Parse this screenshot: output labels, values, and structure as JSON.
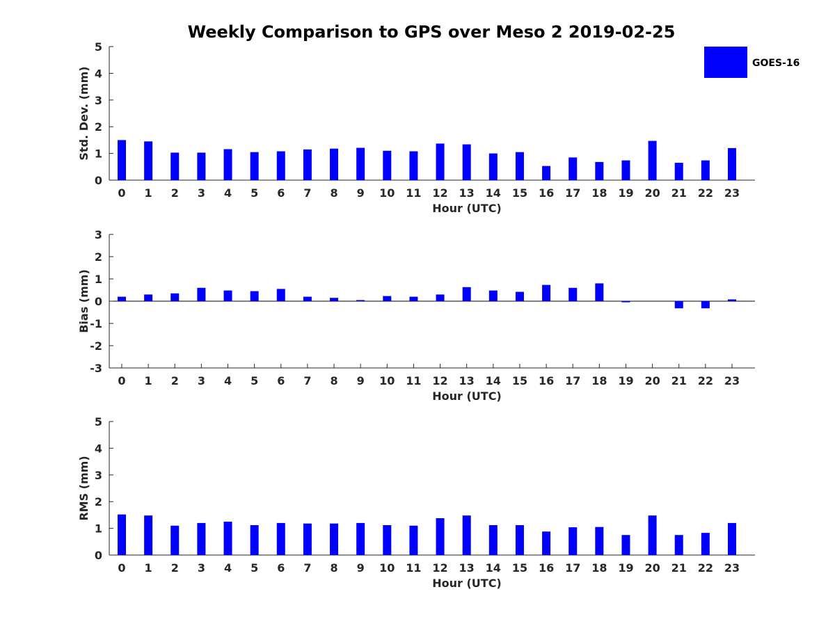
{
  "chart_data": {
    "title": "Weekly Comparison to GPS over Meso 2 2019-02-25",
    "legend": {
      "label": "GOES-16",
      "color": "#0000ff",
      "placement": "top-right"
    },
    "bar_color": "#0000ff",
    "subplots": [
      {
        "type": "bar",
        "categories": [
          "0",
          "1",
          "2",
          "3",
          "4",
          "5",
          "6",
          "7",
          "8",
          "9",
          "10",
          "11",
          "12",
          "13",
          "14",
          "15",
          "16",
          "17",
          "18",
          "19",
          "20",
          "21",
          "22",
          "23"
        ],
        "values": [
          1.5,
          1.45,
          1.03,
          1.03,
          1.16,
          1.05,
          1.08,
          1.15,
          1.18,
          1.21,
          1.1,
          1.08,
          1.37,
          1.34,
          1.0,
          1.05,
          0.53,
          0.85,
          0.68,
          0.74,
          1.47,
          0.65,
          0.74,
          1.2
        ],
        "xlabel": "Hour (UTC)",
        "ylabel": "Std. Dev. (mm)",
        "ylim": [
          0,
          5
        ],
        "yticks": [
          "0",
          "1",
          "2",
          "3",
          "4",
          "5"
        ]
      },
      {
        "type": "bar",
        "categories": [
          "0",
          "1",
          "2",
          "3",
          "4",
          "5",
          "6",
          "7",
          "8",
          "9",
          "10",
          "11",
          "12",
          "13",
          "14",
          "15",
          "16",
          "17",
          "18",
          "19",
          "20",
          "21",
          "22",
          "23"
        ],
        "values": [
          0.2,
          0.3,
          0.35,
          0.6,
          0.48,
          0.45,
          0.55,
          0.2,
          0.15,
          0.05,
          0.23,
          0.2,
          0.3,
          0.63,
          0.48,
          0.42,
          0.73,
          0.6,
          0.8,
          -0.05,
          0.0,
          -0.32,
          -0.32,
          0.08
        ],
        "xlabel": "Hour (UTC)",
        "ylabel": "Bias (mm)",
        "ylim": [
          -3,
          3
        ],
        "yticks": [
          "-3",
          "-2",
          "-1",
          "0",
          "1",
          "2",
          "3"
        ]
      },
      {
        "type": "bar",
        "categories": [
          "0",
          "1",
          "2",
          "3",
          "4",
          "5",
          "6",
          "7",
          "8",
          "9",
          "10",
          "11",
          "12",
          "13",
          "14",
          "15",
          "16",
          "17",
          "18",
          "19",
          "20",
          "21",
          "22",
          "23"
        ],
        "values": [
          1.52,
          1.48,
          1.1,
          1.2,
          1.25,
          1.12,
          1.2,
          1.18,
          1.18,
          1.2,
          1.12,
          1.1,
          1.38,
          1.48,
          1.12,
          1.12,
          0.88,
          1.04,
          1.05,
          0.75,
          1.48,
          0.75,
          0.83,
          1.2
        ],
        "xlabel": "Hour (UTC)",
        "ylabel": "RMS (mm)",
        "ylim": [
          0,
          5
        ],
        "yticks": [
          "0",
          "1",
          "2",
          "3",
          "4",
          "5"
        ]
      }
    ]
  }
}
